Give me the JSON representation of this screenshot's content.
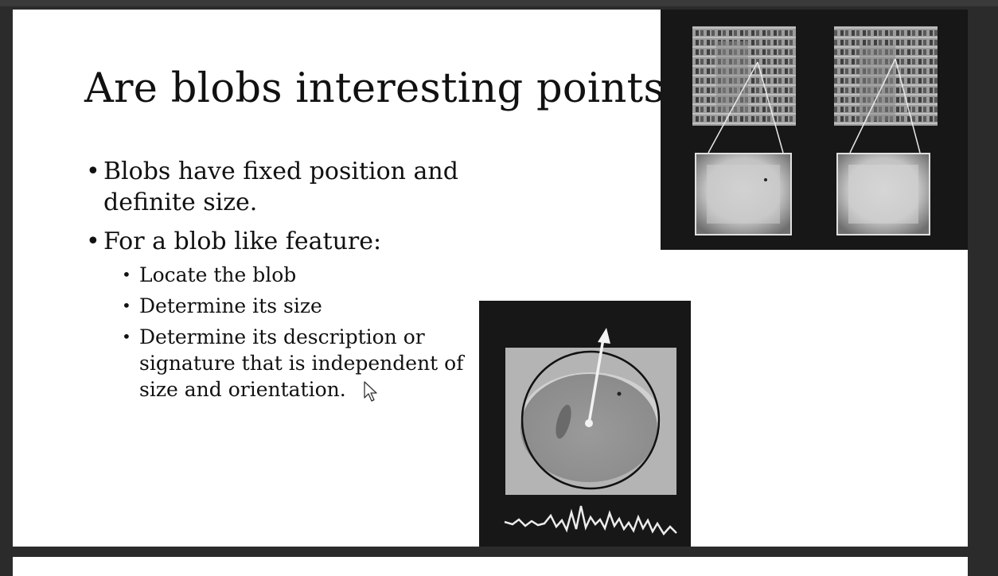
{
  "slide": {
    "title": "Are blobs interesting points?",
    "bullets": [
      "Blobs have fixed position and definite size.",
      "For a blob like feature:"
    ],
    "sub_bullets": [
      "Locate the blob",
      "Determine its size",
      "Determine its description or signature that is independent of size and orientation."
    ]
  }
}
